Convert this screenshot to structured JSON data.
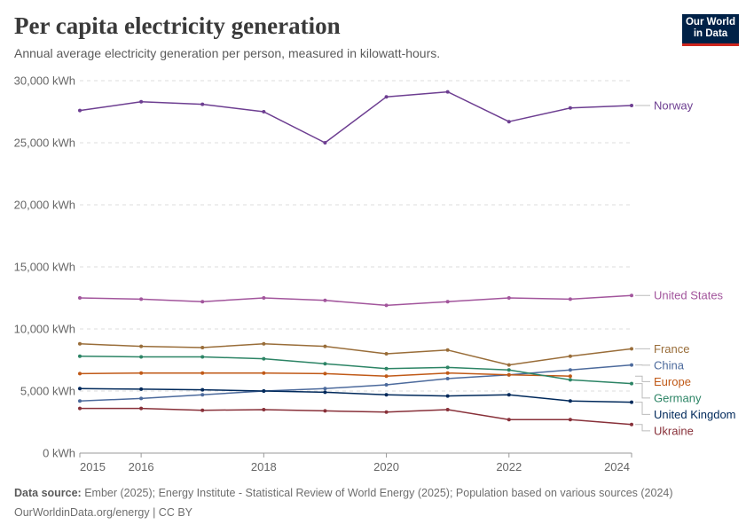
{
  "header": {
    "title": "Per capita electricity generation",
    "subtitle": "Annual average electricity generation per person, measured in kilowatt-hours.",
    "logo_line1": "Our World",
    "logo_line2": "in Data"
  },
  "footer": {
    "source_label": "Data source:",
    "source_text": "Ember (2025); Energy Institute - Statistical Review of World Energy (2025); Population based on various sources (2024)",
    "url_text": "OurWorldinData.org/energy | CC BY"
  },
  "colors": {
    "brand": "#002147",
    "accent": "#ce261e",
    "grid": "#dddddd",
    "axis": "#666666"
  },
  "chart_data": {
    "type": "line",
    "title": "Per capita electricity generation",
    "subtitle": "Annual average electricity generation per person, measured in kilowatt-hours.",
    "xlabel": "",
    "ylabel": "",
    "xlim": [
      2015,
      2024
    ],
    "ylim": [
      0,
      30000
    ],
    "grid": "horizontal dashed",
    "legend": "right-end labels",
    "x_ticks": [
      2015,
      2016,
      2018,
      2020,
      2022,
      2024
    ],
    "x_tick_labels": [
      "2015",
      "2016",
      "2018",
      "2020",
      "2022",
      "2024"
    ],
    "y_ticks": [
      0,
      5000,
      10000,
      15000,
      20000,
      25000,
      30000
    ],
    "y_tick_labels": [
      "0 kWh",
      "5,000 kWh",
      "10,000 kWh",
      "15,000 kWh",
      "20,000 kWh",
      "25,000 kWh",
      "30,000 kWh"
    ],
    "series": [
      {
        "name": "Norway",
        "color": "#6d3e91",
        "x": [
          2015,
          2016,
          2017,
          2018,
          2019,
          2020,
          2021,
          2022,
          2023,
          2024
        ],
        "values": [
          27600,
          28300,
          28100,
          27500,
          25000,
          28700,
          29100,
          26700,
          27800,
          28000
        ]
      },
      {
        "name": "United States",
        "color": "#a2559c",
        "x": [
          2015,
          2016,
          2017,
          2018,
          2019,
          2020,
          2021,
          2022,
          2023,
          2024
        ],
        "values": [
          12500,
          12400,
          12200,
          12500,
          12300,
          11900,
          12200,
          12500,
          12400,
          12700
        ]
      },
      {
        "name": "France",
        "color": "#996d39",
        "x": [
          2015,
          2016,
          2017,
          2018,
          2019,
          2020,
          2021,
          2022,
          2023,
          2024
        ],
        "values": [
          8800,
          8600,
          8500,
          8800,
          8600,
          8000,
          8300,
          7100,
          7800,
          8400
        ]
      },
      {
        "name": "China",
        "color": "#4c6a9c",
        "x": [
          2015,
          2016,
          2017,
          2018,
          2019,
          2020,
          2021,
          2022,
          2023,
          2024
        ],
        "values": [
          4200,
          4400,
          4700,
          5000,
          5200,
          5500,
          6000,
          6300,
          6700,
          7100
        ]
      },
      {
        "name": "Europe",
        "color": "#c05917",
        "x": [
          2015,
          2016,
          2017,
          2018,
          2019,
          2020,
          2021,
          2022,
          2023
        ],
        "values": [
          6400,
          6450,
          6450,
          6450,
          6400,
          6200,
          6450,
          6300,
          6200
        ]
      },
      {
        "name": "Germany",
        "color": "#2c8465",
        "x": [
          2015,
          2016,
          2017,
          2018,
          2019,
          2020,
          2021,
          2022,
          2023,
          2024
        ],
        "values": [
          7800,
          7750,
          7750,
          7600,
          7200,
          6800,
          6900,
          6700,
          5900,
          5600
        ]
      },
      {
        "name": "United Kingdom",
        "color": "#00295b",
        "x": [
          2015,
          2016,
          2017,
          2018,
          2019,
          2020,
          2021,
          2022,
          2023,
          2024
        ],
        "values": [
          5200,
          5150,
          5100,
          5000,
          4900,
          4700,
          4600,
          4700,
          4200,
          4100
        ]
      },
      {
        "name": "Ukraine",
        "color": "#883039",
        "x": [
          2015,
          2016,
          2017,
          2018,
          2019,
          2020,
          2021,
          2022,
          2023,
          2024
        ],
        "values": [
          3600,
          3600,
          3450,
          3500,
          3400,
          3300,
          3500,
          2700,
          2700,
          2300
        ]
      }
    ],
    "label_order": [
      "Norway",
      "United States",
      "France",
      "China",
      "Europe",
      "Germany",
      "United Kingdom",
      "Ukraine"
    ]
  }
}
